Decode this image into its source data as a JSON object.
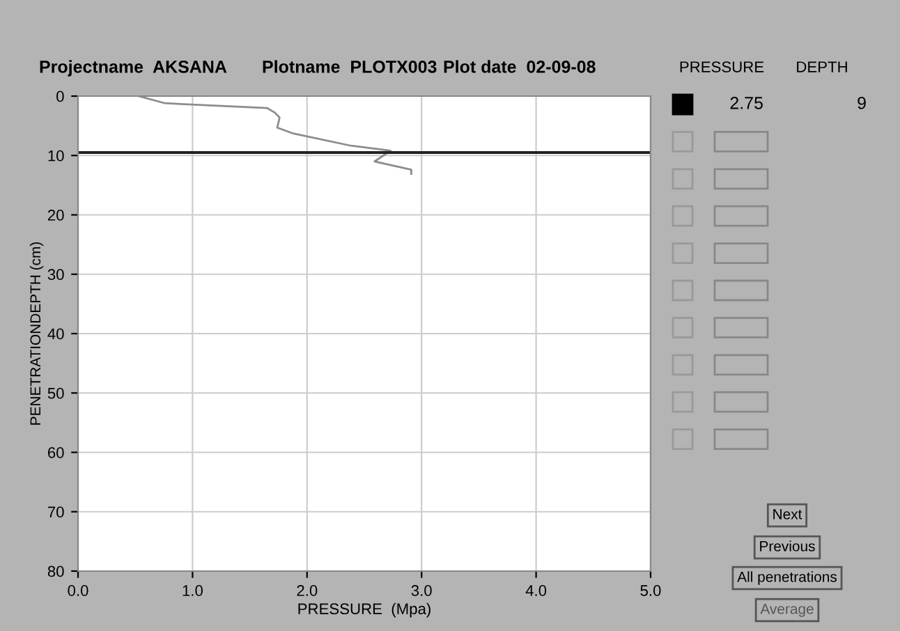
{
  "chart_data": {
    "type": "line",
    "xlabel": "PRESSURE  (Mpa)",
    "ylabel": "PENETRATIONDEPTH (cm)",
    "x": [
      0.53,
      0.76,
      1.65,
      1.72,
      1.76,
      1.74,
      1.88,
      2.37,
      2.73,
      2.59,
      2.91,
      2.91
    ],
    "values": [
      0,
      1.2,
      2.0,
      2.8,
      3.6,
      5.3,
      6.3,
      8.3,
      9.2,
      11.0,
      12.4,
      13.1
    ],
    "color": "#8c8c8c",
    "xlim": [
      0,
      5
    ],
    "xticks": [
      {
        "value": 0,
        "label": "0.0"
      },
      {
        "value": 1,
        "label": "1.0"
      },
      {
        "value": 2,
        "label": "2.0"
      },
      {
        "value": 3,
        "label": "3.0"
      },
      {
        "value": 4,
        "label": "4.0"
      },
      {
        "value": 5,
        "label": "5.0"
      }
    ],
    "ylim": [
      80,
      0
    ],
    "yticks": [
      0,
      10,
      20,
      30,
      40,
      50,
      60,
      70,
      80
    ],
    "grid": true,
    "ref_lines": [
      {
        "axis": "y",
        "value": 9.5,
        "color": "#222222"
      }
    ],
    "annotations": [
      "Projectname  AKSANA",
      "Plotname  PLOTX003",
      "Plot date  02-09-08",
      "PRESSURE",
      "DEPTH",
      "2.75",
      "9",
      "Next",
      "Previous",
      "All penetrations",
      "Average"
    ]
  }
}
